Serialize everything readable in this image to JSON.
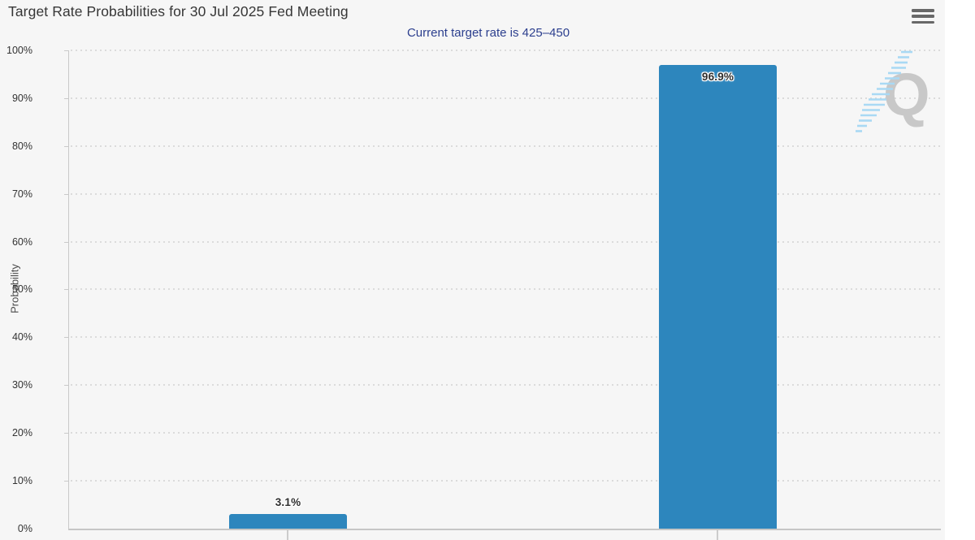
{
  "chart_data": {
    "type": "bar",
    "title": "Target Rate Probabilities for 30 Jul 2025 Fed Meeting",
    "subtitle": "Current target rate is 425–450",
    "ylabel": "Probability",
    "ylim": [
      0,
      100
    ],
    "ytick_labels": [
      "100%",
      "90%",
      "80%",
      "70%",
      "60%",
      "50%",
      "40%",
      "30%",
      "20%",
      "10%",
      "0%"
    ],
    "values": [
      3.1,
      96.9
    ],
    "bar_labels": [
      "3.1%",
      "96.9%"
    ],
    "bar_color": "#2d86bd",
    "grid": "dotted-horizontal",
    "legend_position": "none"
  },
  "header": {
    "menu_icon": "hamburger-menu"
  },
  "watermark": {
    "letter": "Q"
  },
  "colors": {
    "container_background": "#f6f6f6",
    "page_background": "#ffffff",
    "bar": "#2d86bd",
    "title_text": "#363636",
    "subtitle_text": "#2c3f8e",
    "axis_text": "#333333",
    "gridline": "#d4d4d4",
    "axis_line": "#c9c9c9",
    "watermark_gray": "#c8c8c8",
    "watermark_blue": "#a9d9f4"
  }
}
